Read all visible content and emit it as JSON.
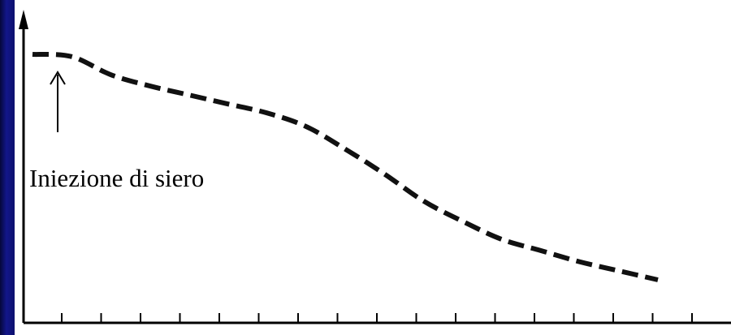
{
  "chart_data": {
    "type": "line",
    "title": "",
    "xlabel": "",
    "ylabel": "",
    "x": [
      0,
      1,
      2,
      3,
      4,
      5,
      6,
      7,
      8,
      9,
      10,
      11,
      12,
      13,
      14,
      15,
      16
    ],
    "series": [
      {
        "values": [
          100,
          99,
          91,
          86,
          82,
          78,
          74,
          68,
          58,
          47,
          35,
          26,
          18,
          13,
          8,
          4,
          0
        ],
        "line_style": "dashed",
        "color": "#111111"
      }
    ],
    "annotations": [
      {
        "text": "Iniezione di siero",
        "x": 0.5,
        "arrow": "up"
      }
    ],
    "axis_ticks_x": 18,
    "grid": false,
    "legend": "none"
  },
  "colors": {
    "background": "#0b0e5c",
    "plot_background": "#ffffff",
    "line": "#111111"
  }
}
